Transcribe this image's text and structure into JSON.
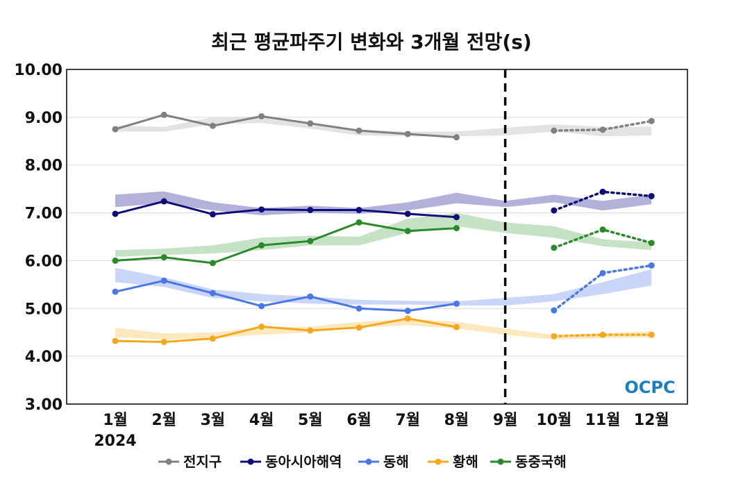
{
  "chart_data": {
    "type": "line",
    "title": "최근 평균파주기 변화와 3개월 전망(s)",
    "categories": [
      "1월",
      "2월",
      "3월",
      "4월",
      "5월",
      "6월",
      "7월",
      "8월",
      "9월",
      "10월",
      "11월",
      "12월"
    ],
    "year_label": "2024",
    "ylim": [
      3.0,
      10.0
    ],
    "yticks": [
      "3.00",
      "4.00",
      "5.00",
      "6.00",
      "7.00",
      "8.00",
      "9.00",
      "10.00"
    ],
    "grid": true,
    "divider_category": "9월",
    "legend_position": "bottom",
    "series": [
      {
        "name": "전지구",
        "color": "#808080",
        "band_color": "#e0e0e0",
        "observed": [
          8.75,
          9.05,
          8.82,
          9.02,
          8.87,
          8.72,
          8.65,
          8.58
        ],
        "forecast": {
          "start_index": 9,
          "values": [
            8.72,
            8.74,
            8.92
          ]
        },
        "band": [
          [
            8.7,
            8.82
          ],
          [
            8.7,
            8.8
          ],
          [
            8.85,
            9.0
          ],
          [
            8.88,
            9.02
          ],
          [
            8.76,
            8.9
          ],
          [
            8.62,
            8.74
          ],
          [
            8.6,
            8.7
          ],
          [
            8.6,
            8.7
          ],
          [
            8.62,
            8.78
          ],
          [
            8.7,
            8.85
          ],
          [
            8.6,
            8.8
          ],
          [
            8.62,
            8.8
          ]
        ]
      },
      {
        "name": "동아시아해역",
        "color": "#0d0d7a",
        "band_color": "#a9a9d6",
        "observed": [
          6.98,
          7.24,
          6.97,
          7.07,
          7.06,
          7.06,
          6.98,
          6.91
        ],
        "forecast": {
          "start_index": 9,
          "values": [
            7.05,
            7.44,
            7.35
          ]
        },
        "band": [
          [
            7.12,
            7.38
          ],
          [
            7.2,
            7.45
          ],
          [
            7.05,
            7.22
          ],
          [
            6.95,
            7.1
          ],
          [
            7.0,
            7.15
          ],
          [
            6.98,
            7.1
          ],
          [
            7.05,
            7.22
          ],
          [
            7.2,
            7.42
          ],
          [
            7.12,
            7.25
          ],
          [
            7.22,
            7.38
          ],
          [
            7.05,
            7.25
          ],
          [
            7.18,
            7.38
          ]
        ]
      },
      {
        "name": "동해",
        "color": "#4a77e8",
        "band_color": "#c4d2f7",
        "observed": [
          5.35,
          5.58,
          5.32,
          5.05,
          5.25,
          5.0,
          4.95,
          5.1
        ],
        "forecast": {
          "start_index": 9,
          "values": [
            4.96,
            5.74,
            5.9
          ]
        },
        "band": [
          [
            5.55,
            5.85
          ],
          [
            5.45,
            5.65
          ],
          [
            5.22,
            5.4
          ],
          [
            5.15,
            5.3
          ],
          [
            5.1,
            5.25
          ],
          [
            5.08,
            5.18
          ],
          [
            5.08,
            5.16
          ],
          [
            5.06,
            5.15
          ],
          [
            5.06,
            5.22
          ],
          [
            5.15,
            5.3
          ],
          [
            5.3,
            5.55
          ],
          [
            5.48,
            5.82
          ]
        ]
      },
      {
        "name": "황해",
        "color": "#f5a81c",
        "band_color": "#fce5b8",
        "observed": [
          4.32,
          4.3,
          4.37,
          4.62,
          4.54,
          4.6,
          4.79,
          4.61
        ],
        "forecast": {
          "start_index": 9,
          "values": [
            4.42,
            4.45,
            4.45
          ]
        },
        "band": [
          [
            4.4,
            4.6
          ],
          [
            4.35,
            4.48
          ],
          [
            4.38,
            4.5
          ],
          [
            4.45,
            4.6
          ],
          [
            4.5,
            4.62
          ],
          [
            4.6,
            4.72
          ],
          [
            4.65,
            4.78
          ],
          [
            4.58,
            4.72
          ],
          [
            4.45,
            4.58
          ],
          [
            4.35,
            4.45
          ],
          [
            4.38,
            4.48
          ],
          [
            4.4,
            4.52
          ]
        ]
      },
      {
        "name": "동중국해",
        "color": "#2a8a2a",
        "band_color": "#bfdfbf",
        "observed": [
          6.0,
          6.07,
          5.95,
          6.32,
          6.41,
          6.8,
          6.62,
          6.68
        ],
        "forecast": {
          "start_index": 9,
          "values": [
            6.27,
            6.65,
            6.37
          ]
        },
        "band": [
          [
            6.08,
            6.22
          ],
          [
            6.12,
            6.25
          ],
          [
            6.15,
            6.32
          ],
          [
            6.22,
            6.48
          ],
          [
            6.32,
            6.52
          ],
          [
            6.32,
            6.5
          ],
          [
            6.58,
            6.88
          ],
          [
            6.72,
            7.0
          ],
          [
            6.58,
            6.8
          ],
          [
            6.48,
            6.72
          ],
          [
            6.3,
            6.45
          ],
          [
            6.22,
            6.38
          ]
        ]
      }
    ]
  },
  "logo": {
    "text": "OCPC",
    "color": "#1a7fc1"
  }
}
